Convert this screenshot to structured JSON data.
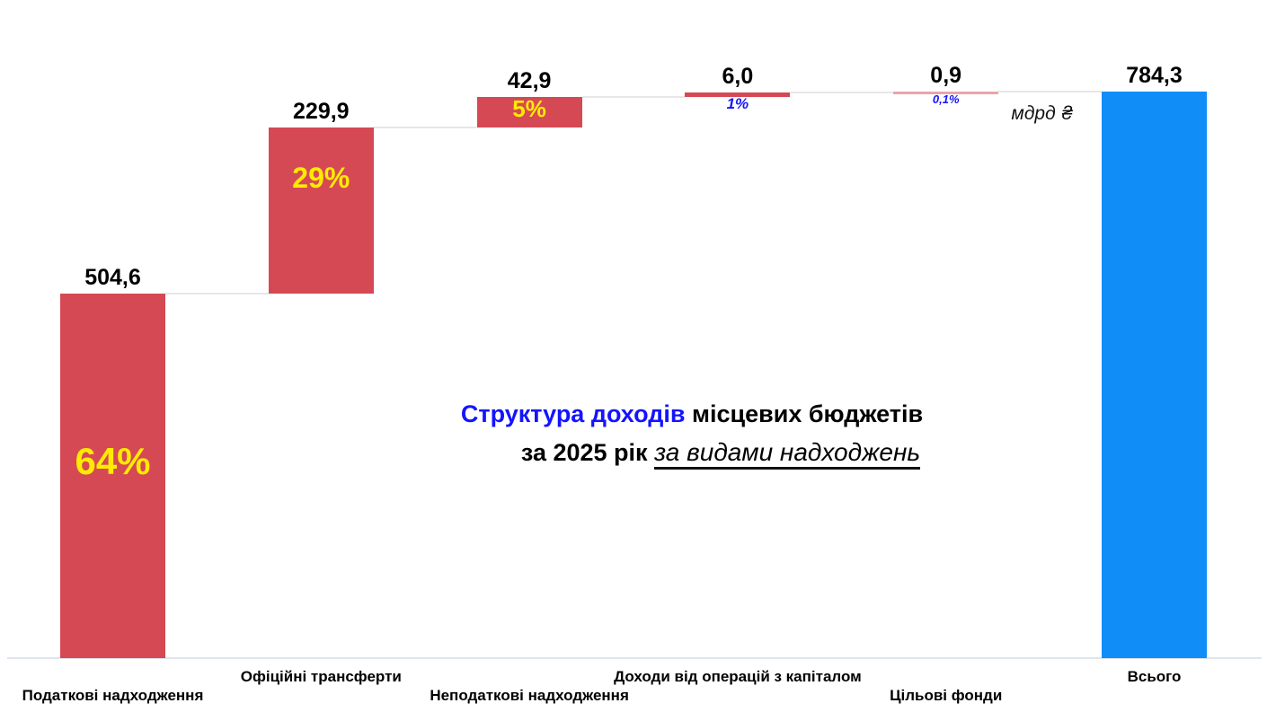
{
  "chart_data": {
    "type": "bar",
    "subtype": "waterfall",
    "title": {
      "line1_colored": "Структура доходів",
      "line1_rest": " місцевих бюджетів",
      "line2_plain": "за 2025 рік ",
      "line2_emphasis": "за видами надходжень"
    },
    "unit_label": "мдрд ₴",
    "categories": [
      "Податкові надходження",
      "Офіційні трансферти",
      "Неподаткові надходження",
      "Доходи від операцій з капіталом",
      "Цільові фонди",
      "Всього"
    ],
    "bars": [
      {
        "category": "Податкові надходження",
        "value": 504.6,
        "value_label": "504,6",
        "percent": "64%",
        "role": "component",
        "label_row": "lower"
      },
      {
        "category": "Офіційні трансферти",
        "value": 229.9,
        "value_label": "229,9",
        "percent": "29%",
        "role": "component",
        "label_row": "upper"
      },
      {
        "category": "Неподаткові надходження",
        "value": 42.9,
        "value_label": "42,9",
        "percent": "5%",
        "role": "component",
        "label_row": "lower"
      },
      {
        "category": "Доходи від операцій з капіталом",
        "value": 6.0,
        "value_label": "6,0",
        "percent": "1%",
        "role": "component",
        "label_row": "upper"
      },
      {
        "category": "Цільові фонди",
        "value": 0.9,
        "value_label": "0,9",
        "percent": "0,1%",
        "role": "component",
        "label_row": "lower"
      },
      {
        "category": "Всього",
        "value": 784.3,
        "value_label": "784,3",
        "percent": "",
        "role": "total",
        "label_row": "upper"
      }
    ],
    "total": 784.3,
    "ylim": [
      0,
      784.3
    ],
    "grid": false,
    "legend": false,
    "colors": {
      "component_bar": "#d54954",
      "component_bar_thin": "#eda3ab",
      "total_bar": "#118df8",
      "percent_inside": "#ffeb00",
      "percent_below": "#1414ff",
      "value_label": "#000000",
      "title_highlight": "#1414ff",
      "connector": "#e7e7e7",
      "baseline": "#dfe5ef"
    }
  }
}
